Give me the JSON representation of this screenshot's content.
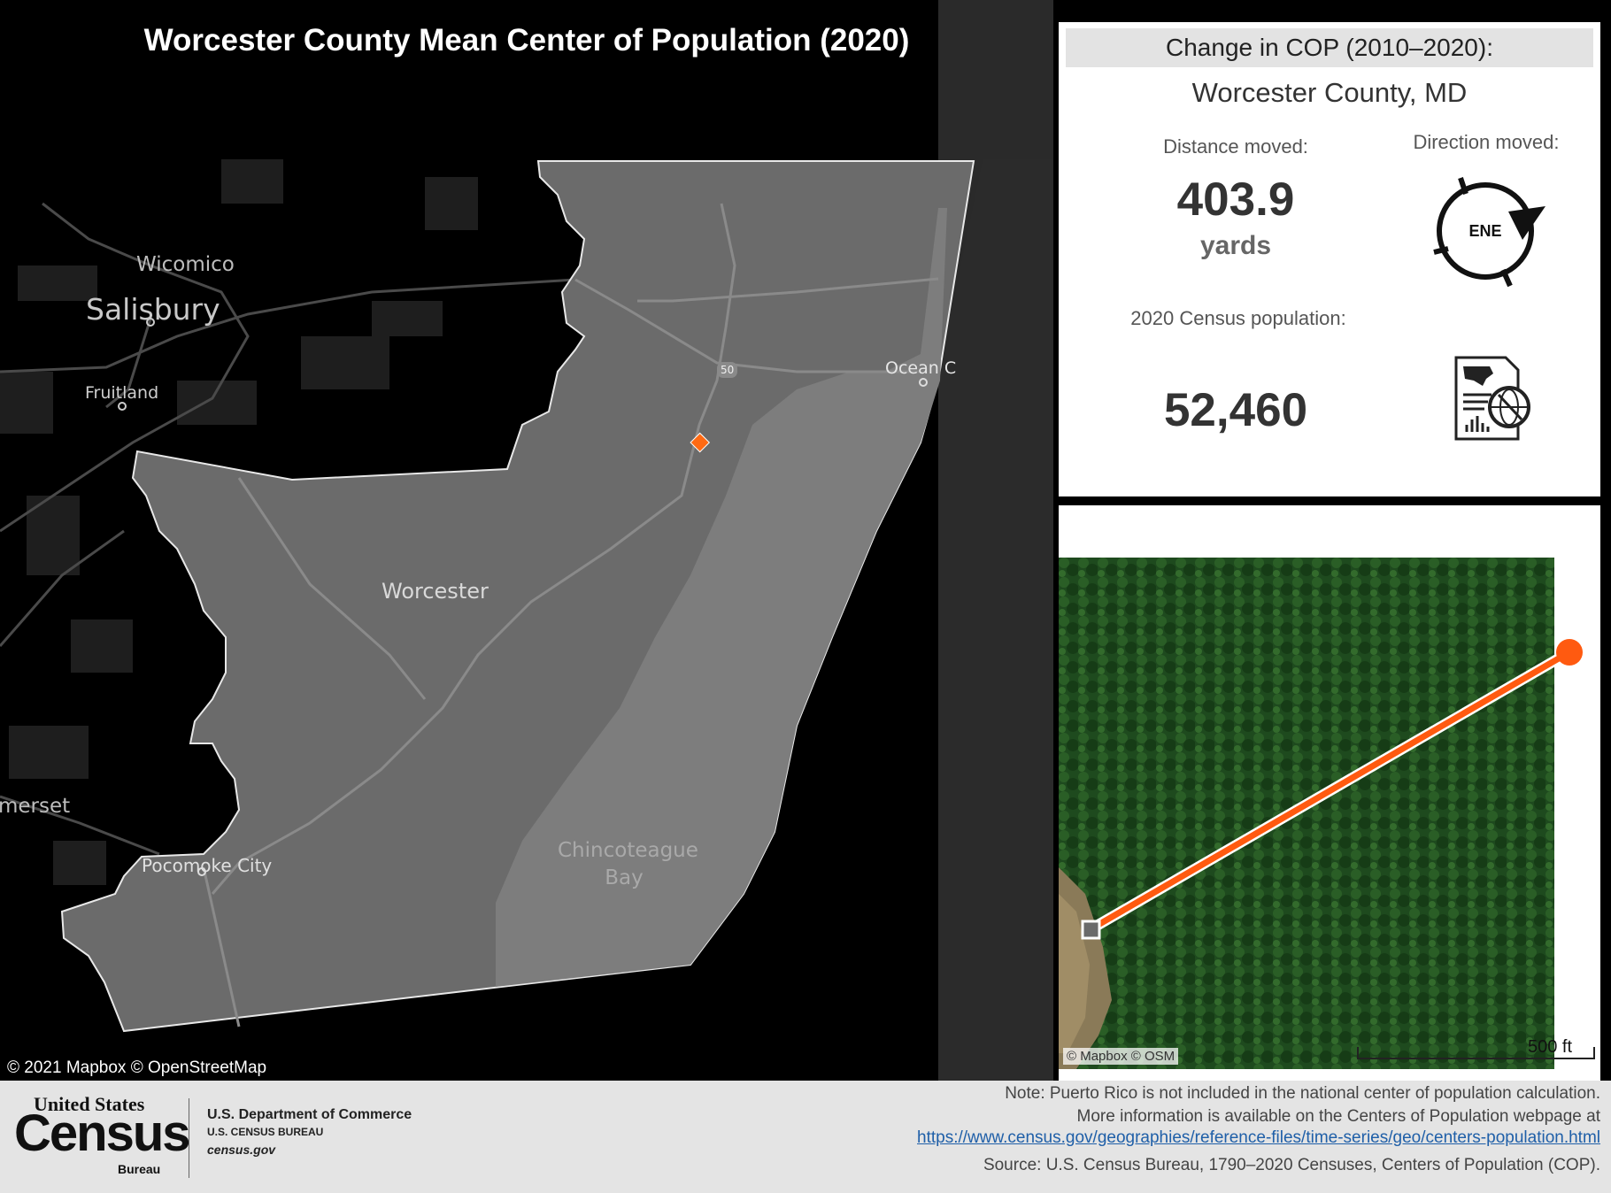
{
  "map": {
    "title": "Worcester County Mean Center of Population (2020)",
    "labels": {
      "salisbury": "Salisbury",
      "wicomico": "Wicomico",
      "fruitland": "Fruitland",
      "worcester": "Worcester",
      "somerset": "merset",
      "pocomoke": "Pocomoke City",
      "ocean_city": "Ocean C",
      "chincoteague": "Chincoteague Bay",
      "route": "50"
    },
    "attribution": "© 2021 Mapbox © OpenStreetMap",
    "colors": {
      "background": "#000000",
      "county_fill": "#6e6e6e",
      "center_marker": "#ff6a13"
    }
  },
  "info": {
    "header": "Change in COP (2010–2020):",
    "county": "Worcester County, MD",
    "distance_label": "Distance moved:",
    "distance_value": "403.9",
    "distance_unit": "yards",
    "direction_label": "Direction moved:",
    "direction_value": "ENE",
    "population_label": "2020 Census population:",
    "population_value": "52,460",
    "icons": [
      "compass-icon",
      "census-document-icon"
    ]
  },
  "satellite": {
    "attribution": "© Mapbox  © OSM",
    "scale_label": "500 ft",
    "colors": {
      "path": "#ff5a10",
      "start_marker": "#cfcfcf",
      "end_marker": "#ff5a10"
    }
  },
  "footer": {
    "logo_top": "United States",
    "logo_main": "Census",
    "logo_bureau": "Bureau",
    "dept1": "U.S. Department of Commerce",
    "dept2": "U.S. CENSUS BUREAU",
    "dept3": "census.gov",
    "note1": "Note: Puerto Rico is not included in the national center of population calculation.",
    "note2": "More information is available on the Centers of Population webpage at",
    "note3": "https://www.census.gov/geographies/reference-files/time-series/geo/centers-population.html",
    "note4": "Source: U.S. Census Bureau, 1790–2020 Censuses, Centers of Population (COP)."
  }
}
